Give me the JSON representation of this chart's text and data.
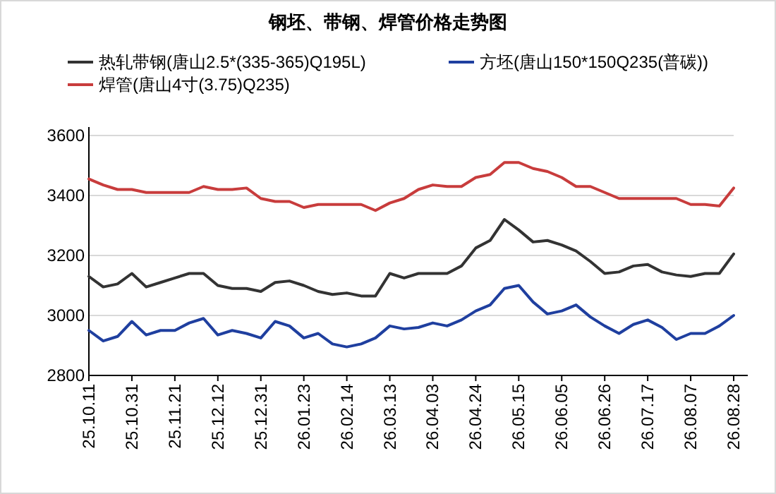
{
  "chart_data": {
    "type": "line",
    "title": "钢坯、带钢、焊管价格走势图",
    "categories": [
      "25.10.11",
      null,
      null,
      "25.10.31",
      null,
      null,
      "25.11.21",
      null,
      null,
      "25.12.12",
      null,
      null,
      "25.12.31",
      null,
      null,
      "26.01.23",
      null,
      null,
      "26.02.14",
      null,
      null,
      "26.03.13",
      null,
      null,
      "26.04.03",
      null,
      null,
      "26.04.24",
      null,
      null,
      "26.05.15",
      null,
      null,
      "26.06.05",
      null,
      null,
      "26.06.26",
      null,
      null,
      "26.07.17",
      null,
      null,
      "26.08.07",
      null,
      null,
      "26.08.28"
    ],
    "series": [
      {
        "name": "热轧带钢(唐山2.5*(335-365)Q195L)",
        "color": "#333333",
        "values": [
          3130,
          3095,
          3105,
          3140,
          3095,
          3110,
          3125,
          3140,
          3140,
          3100,
          3090,
          3090,
          3080,
          3110,
          3115,
          3100,
          3080,
          3070,
          3075,
          3065,
          3065,
          3140,
          3125,
          3140,
          3140,
          3140,
          3165,
          3225,
          3250,
          3320,
          3285,
          3245,
          3250,
          3235,
          3215,
          3180,
          3140,
          3145,
          3165,
          3170,
          3145,
          3135,
          3130,
          3140,
          3140,
          3205
        ]
      },
      {
        "name": "方坯(唐山150*150Q235(普碳))",
        "color": "#1f3f9f",
        "values": [
          2950,
          2915,
          2930,
          2980,
          2935,
          2950,
          2950,
          2975,
          2990,
          2935,
          2950,
          2940,
          2925,
          2980,
          2965,
          2925,
          2940,
          2905,
          2895,
          2905,
          2925,
          2965,
          2955,
          2960,
          2975,
          2965,
          2985,
          3015,
          3035,
          3090,
          3100,
          3045,
          3005,
          3015,
          3035,
          2995,
          2965,
          2940,
          2970,
          2985,
          2960,
          2920,
          2940,
          2940,
          2965,
          3000
        ]
      },
      {
        "name": "焊管(唐山4寸(3.75)Q235)",
        "color": "#c83c3c",
        "values": [
          3455,
          3435,
          3420,
          3420,
          3410,
          3410,
          3410,
          3410,
          3430,
          3420,
          3420,
          3425,
          3390,
          3380,
          3380,
          3360,
          3370,
          3370,
          3370,
          3370,
          3350,
          3375,
          3390,
          3420,
          3435,
          3430,
          3430,
          3460,
          3470,
          3510,
          3510,
          3490,
          3480,
          3460,
          3430,
          3430,
          3410,
          3390,
          3390,
          3390,
          3390,
          3390,
          3370,
          3370,
          3365,
          3425
        ]
      }
    ],
    "ylim": [
      2800,
      3600
    ],
    "yticks": [
      2800,
      3000,
      3200,
      3400,
      3600
    ],
    "grid": "y",
    "legend": "top",
    "line_style": "solid",
    "marker": "none"
  }
}
